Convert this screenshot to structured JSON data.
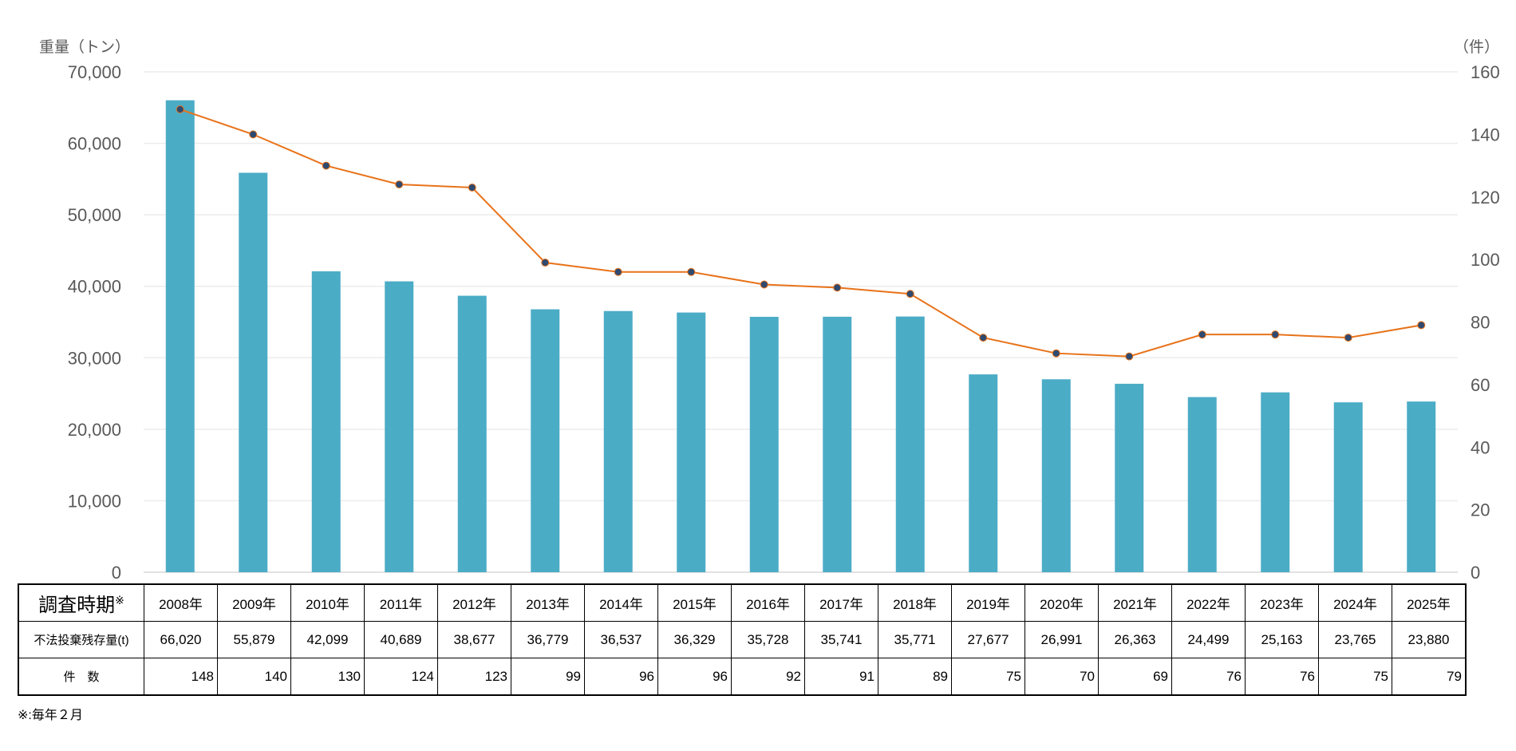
{
  "chart_data": {
    "type": "bar+line",
    "left_axis_title": "重量（トン）",
    "right_axis_title": "（件）",
    "categories": [
      "2008年",
      "2009年",
      "2010年",
      "2011年",
      "2012年",
      "2013年",
      "2014年",
      "2015年",
      "2016年",
      "2017年",
      "2018年",
      "2019年",
      "2020年",
      "2021年",
      "2022年",
      "2023年",
      "2024年",
      "2025年"
    ],
    "series": [
      {
        "name": "不法投棄残存量(t)",
        "type": "bar",
        "axis": "left",
        "color": "#4BACC6",
        "values": [
          66020,
          55879,
          42099,
          40689,
          38677,
          36779,
          36537,
          36329,
          35728,
          35741,
          35771,
          27677,
          26991,
          26363,
          24499,
          25163,
          23765,
          23880
        ],
        "labels": [
          "66,020",
          "55,879",
          "42,099",
          "40,689",
          "38,677",
          "36,779",
          "36,537",
          "36,329",
          "35,728",
          "35,741",
          "35,771",
          "27,677",
          "26,991",
          "26,363",
          "24,499",
          "25,163",
          "23,765",
          "23,880"
        ]
      },
      {
        "name": "件 数",
        "type": "line",
        "axis": "right",
        "color": "#E8731A",
        "marker_color": "#2E4A70",
        "values": [
          148,
          140,
          130,
          124,
          123,
          99,
          96,
          96,
          92,
          91,
          89,
          75,
          70,
          69,
          76,
          76,
          75,
          79
        ]
      }
    ],
    "left_ylim": [
      0,
      70000
    ],
    "left_ticks": [
      "0",
      "10,000",
      "20,000",
      "30,000",
      "40,000",
      "50,000",
      "60,000",
      "70,000"
    ],
    "right_ylim": [
      0,
      160
    ],
    "right_ticks": [
      "0",
      "20",
      "40",
      "60",
      "80",
      "100",
      "120",
      "140",
      "160"
    ],
    "grid": true
  },
  "table": {
    "header_label": "調査時期",
    "header_mark": "※",
    "row1_label": "不法投棄残存量(t)",
    "row2_label": "件　数"
  },
  "footnote": "※:毎年２月"
}
